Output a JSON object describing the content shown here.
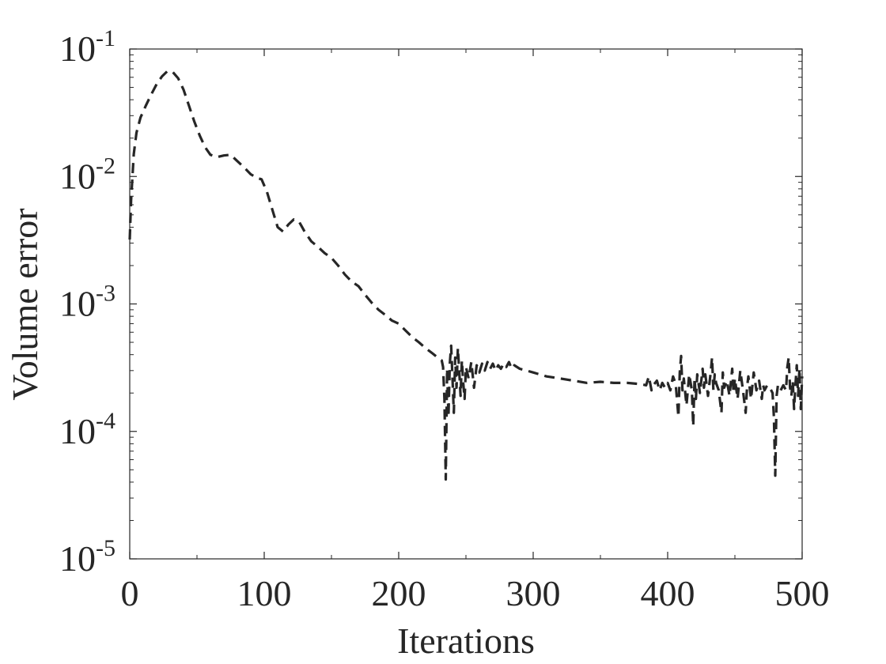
{
  "chart_data": {
    "type": "line",
    "xlabel": "Iterations",
    "ylabel": "Volume error",
    "xlim": [
      0,
      500
    ],
    "ylim": [
      1e-05,
      0.1
    ],
    "yscale": "log",
    "x_ticks": [
      0,
      100,
      200,
      300,
      400,
      500
    ],
    "x_tick_labels": [
      "0",
      "100",
      "200",
      "300",
      "400",
      "500"
    ],
    "y_ticks": [
      0.1,
      0.01,
      0.001,
      0.0001,
      1e-05
    ],
    "y_tick_labels": [
      {
        "base": "10",
        "exp": "-1"
      },
      {
        "base": "10",
        "exp": "-2"
      },
      {
        "base": "10",
        "exp": "-3"
      },
      {
        "base": "10",
        "exp": "-4"
      },
      {
        "base": "10",
        "exp": "-5"
      }
    ],
    "grid": false,
    "box": true,
    "line_color": "#262626",
    "line_style": "dashed",
    "series": [
      {
        "values": [
          [
            0,
            0.0032
          ],
          [
            1,
            0.0065
          ],
          [
            3,
            0.015
          ],
          [
            5,
            0.022
          ],
          [
            8,
            0.029
          ],
          [
            12,
            0.036
          ],
          [
            16,
            0.044
          ],
          [
            20,
            0.053
          ],
          [
            24,
            0.061
          ],
          [
            28,
            0.067
          ],
          [
            32,
            0.066
          ],
          [
            36,
            0.059
          ],
          [
            40,
            0.048
          ],
          [
            44,
            0.036
          ],
          [
            48,
            0.027
          ],
          [
            52,
            0.021
          ],
          [
            56,
            0.017
          ],
          [
            60,
            0.0148
          ],
          [
            65,
            0.0142
          ],
          [
            70,
            0.0146
          ],
          [
            75,
            0.0148
          ],
          [
            80,
            0.0132
          ],
          [
            85,
            0.0118
          ],
          [
            90,
            0.0104
          ],
          [
            95,
            0.0097
          ],
          [
            98,
            0.0095
          ],
          [
            102,
            0.0076
          ],
          [
            106,
            0.0055
          ],
          [
            110,
            0.004
          ],
          [
            114,
            0.0037
          ],
          [
            118,
            0.0042
          ],
          [
            122,
            0.0046
          ],
          [
            126,
            0.0044
          ],
          [
            130,
            0.0037
          ],
          [
            135,
            0.0031
          ],
          [
            140,
            0.0028
          ],
          [
            145,
            0.0025
          ],
          [
            150,
            0.0023
          ],
          [
            155,
            0.002
          ],
          [
            160,
            0.0017
          ],
          [
            165,
            0.0015
          ],
          [
            170,
            0.00138
          ],
          [
            175,
            0.00118
          ],
          [
            180,
            0.00102
          ],
          [
            185,
            0.0009
          ],
          [
            190,
            0.00082
          ],
          [
            195,
            0.00074
          ],
          [
            200,
            0.0007
          ],
          [
            205,
            0.00062
          ],
          [
            210,
            0.00055
          ],
          [
            215,
            0.0005
          ],
          [
            220,
            0.00045
          ],
          [
            225,
            0.00041
          ],
          [
            229,
            0.00038
          ],
          [
            232,
            0.00036
          ],
          [
            233,
            0.00032
          ],
          [
            234,
            0.00018
          ],
          [
            235,
            4.2e-05
          ],
          [
            236,
            0.00031
          ],
          [
            237,
            0.00013
          ],
          [
            238,
            0.00034
          ],
          [
            239,
            0.00047
          ],
          [
            240,
            0.00026
          ],
          [
            241,
            0.00014
          ],
          [
            242,
            0.00038
          ],
          [
            243,
            0.00022
          ],
          [
            244,
            0.00045
          ],
          [
            245,
            0.0003
          ],
          [
            246,
            0.00019
          ],
          [
            247,
            0.00036
          ],
          [
            248,
            0.00024
          ],
          [
            249,
            0.00018
          ],
          [
            250,
            0.00032
          ],
          [
            252,
            0.00026
          ],
          [
            254,
            0.00035
          ],
          [
            256,
            0.00022
          ],
          [
            258,
            0.00033
          ],
          [
            260,
            0.00029
          ],
          [
            262,
            0.00034
          ],
          [
            264,
            0.0003
          ],
          [
            266,
            0.00035
          ],
          [
            268,
            0.00031
          ],
          [
            270,
            0.00034
          ],
          [
            272,
            0.0003
          ],
          [
            274,
            0.00033
          ],
          [
            276,
            0.00031
          ],
          [
            278,
            0.00034
          ],
          [
            280,
            0.00032
          ],
          [
            282,
            0.00035
          ],
          [
            284,
            0.00031
          ],
          [
            286,
            0.00033
          ],
          [
            290,
            0.00031
          ],
          [
            295,
            0.0003
          ],
          [
            300,
            0.00029
          ],
          [
            310,
            0.00027
          ],
          [
            320,
            0.00026
          ],
          [
            330,
            0.00025
          ],
          [
            340,
            0.00024
          ],
          [
            350,
            0.000245
          ],
          [
            360,
            0.00024
          ],
          [
            370,
            0.00024
          ],
          [
            380,
            0.000235
          ],
          [
            384,
            0.00023
          ],
          [
            386,
            0.00027
          ],
          [
            388,
            0.00021
          ],
          [
            390,
            0.000235
          ],
          [
            392,
            0.00025
          ],
          [
            394,
            0.00021
          ],
          [
            396,
            0.00024
          ],
          [
            398,
            0.00022
          ],
          [
            400,
            0.00024
          ],
          [
            402,
            0.00021
          ],
          [
            404,
            0.00027
          ],
          [
            406,
            0.000235
          ],
          [
            408,
            0.00013
          ],
          [
            409,
            0.00029
          ],
          [
            410,
            0.00039
          ],
          [
            411,
            0.00021
          ],
          [
            412,
            0.00026
          ],
          [
            414,
            0.00016
          ],
          [
            416,
            0.00028
          ],
          [
            418,
            0.00021
          ],
          [
            419,
            0.00011
          ],
          [
            420,
            0.00026
          ],
          [
            421,
            0.00018
          ],
          [
            422,
            0.00028
          ],
          [
            424,
            0.0002
          ],
          [
            426,
            0.00031
          ],
          [
            427,
            0.00022
          ],
          [
            428,
            0.00028
          ],
          [
            430,
            0.00019
          ],
          [
            432,
            0.00029
          ],
          [
            433,
            0.00038
          ],
          [
            434,
            0.00021
          ],
          [
            435,
            0.00028
          ],
          [
            436,
            0.00024
          ],
          [
            438,
            0.00021
          ],
          [
            440,
            0.00014
          ],
          [
            441,
            0.00029
          ],
          [
            442,
            0.00022
          ],
          [
            444,
            0.00025
          ],
          [
            446,
            0.00019
          ],
          [
            448,
            0.00031
          ],
          [
            449,
            0.0002
          ],
          [
            450,
            0.00026
          ],
          [
            452,
            0.00018
          ],
          [
            454,
            0.0003
          ],
          [
            456,
            0.00021
          ],
          [
            458,
            0.00014
          ],
          [
            459,
            0.00022
          ],
          [
            460,
            0.00027
          ],
          [
            462,
            0.00018
          ],
          [
            464,
            0.00029
          ],
          [
            466,
            0.00021
          ],
          [
            468,
            0.00025
          ],
          [
            470,
            0.00018
          ],
          [
            471,
            0.00023
          ],
          [
            472,
            0.00021
          ],
          [
            474,
            0.00023
          ],
          [
            476,
            0.00022
          ],
          [
            478,
            0.0002
          ],
          [
            479,
            0.00013
          ],
          [
            480,
            4.5e-05
          ],
          [
            481,
            0.00019
          ],
          [
            482,
            0.00023
          ],
          [
            484,
            0.00021
          ],
          [
            486,
            0.00023
          ],
          [
            488,
            0.00021
          ],
          [
            489,
            0.00032
          ],
          [
            490,
            0.00038
          ],
          [
            491,
            0.00022
          ],
          [
            492,
            0.00019
          ],
          [
            493,
            0.00025
          ],
          [
            494,
            0.00015
          ],
          [
            495,
            0.00023
          ],
          [
            496,
            0.00033
          ],
          [
            497,
            0.00019
          ],
          [
            498,
            0.00031
          ],
          [
            499,
            0.00015
          ],
          [
            500,
            0.00027
          ]
        ]
      }
    ]
  }
}
